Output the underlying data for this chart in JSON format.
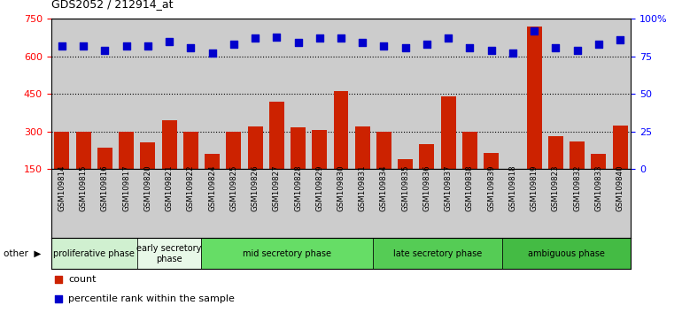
{
  "title": "GDS2052 / 212914_at",
  "samples": [
    "GSM109814",
    "GSM109815",
    "GSM109816",
    "GSM109817",
    "GSM109820",
    "GSM109821",
    "GSM109822",
    "GSM109824",
    "GSM109825",
    "GSM109826",
    "GSM109827",
    "GSM109828",
    "GSM109829",
    "GSM109830",
    "GSM109831",
    "GSM109834",
    "GSM109835",
    "GSM109836",
    "GSM109837",
    "GSM109838",
    "GSM109839",
    "GSM109818",
    "GSM109819",
    "GSM109823",
    "GSM109832",
    "GSM109833",
    "GSM109840"
  ],
  "counts": [
    300,
    300,
    235,
    300,
    255,
    345,
    300,
    210,
    300,
    320,
    420,
    315,
    305,
    460,
    320,
    300,
    190,
    250,
    440,
    300,
    215,
    150,
    720,
    280,
    260,
    210,
    325
  ],
  "percentiles": [
    82,
    82,
    79,
    82,
    82,
    85,
    81,
    77,
    83,
    87,
    88,
    84,
    87,
    87,
    84,
    82,
    81,
    83,
    87,
    81,
    79,
    77,
    92,
    81,
    79,
    83,
    86
  ],
  "phases": [
    {
      "name": "proliferative phase",
      "start": 0,
      "end": 4,
      "color": "#d0f0d0"
    },
    {
      "name": "early secretory\nphase",
      "start": 4,
      "end": 7,
      "color": "#e8f8e8"
    },
    {
      "name": "mid secretory phase",
      "start": 7,
      "end": 15,
      "color": "#66dd66"
    },
    {
      "name": "late secretory phase",
      "start": 15,
      "end": 21,
      "color": "#55cc55"
    },
    {
      "name": "ambiguous phase",
      "start": 21,
      "end": 27,
      "color": "#44bb44"
    }
  ],
  "ylim_left": [
    150,
    750
  ],
  "ylim_right": [
    0,
    100
  ],
  "yticks_left": [
    150,
    300,
    450,
    600,
    750
  ],
  "yticks_right": [
    0,
    25,
    50,
    75,
    100
  ],
  "bar_color": "#cc2200",
  "dot_color": "#0000cc",
  "plot_bg_color": "#cccccc",
  "tick_area_color": "#cccccc",
  "other_label": "other",
  "legend_count": "count",
  "legend_pct": "percentile rank within the sample"
}
